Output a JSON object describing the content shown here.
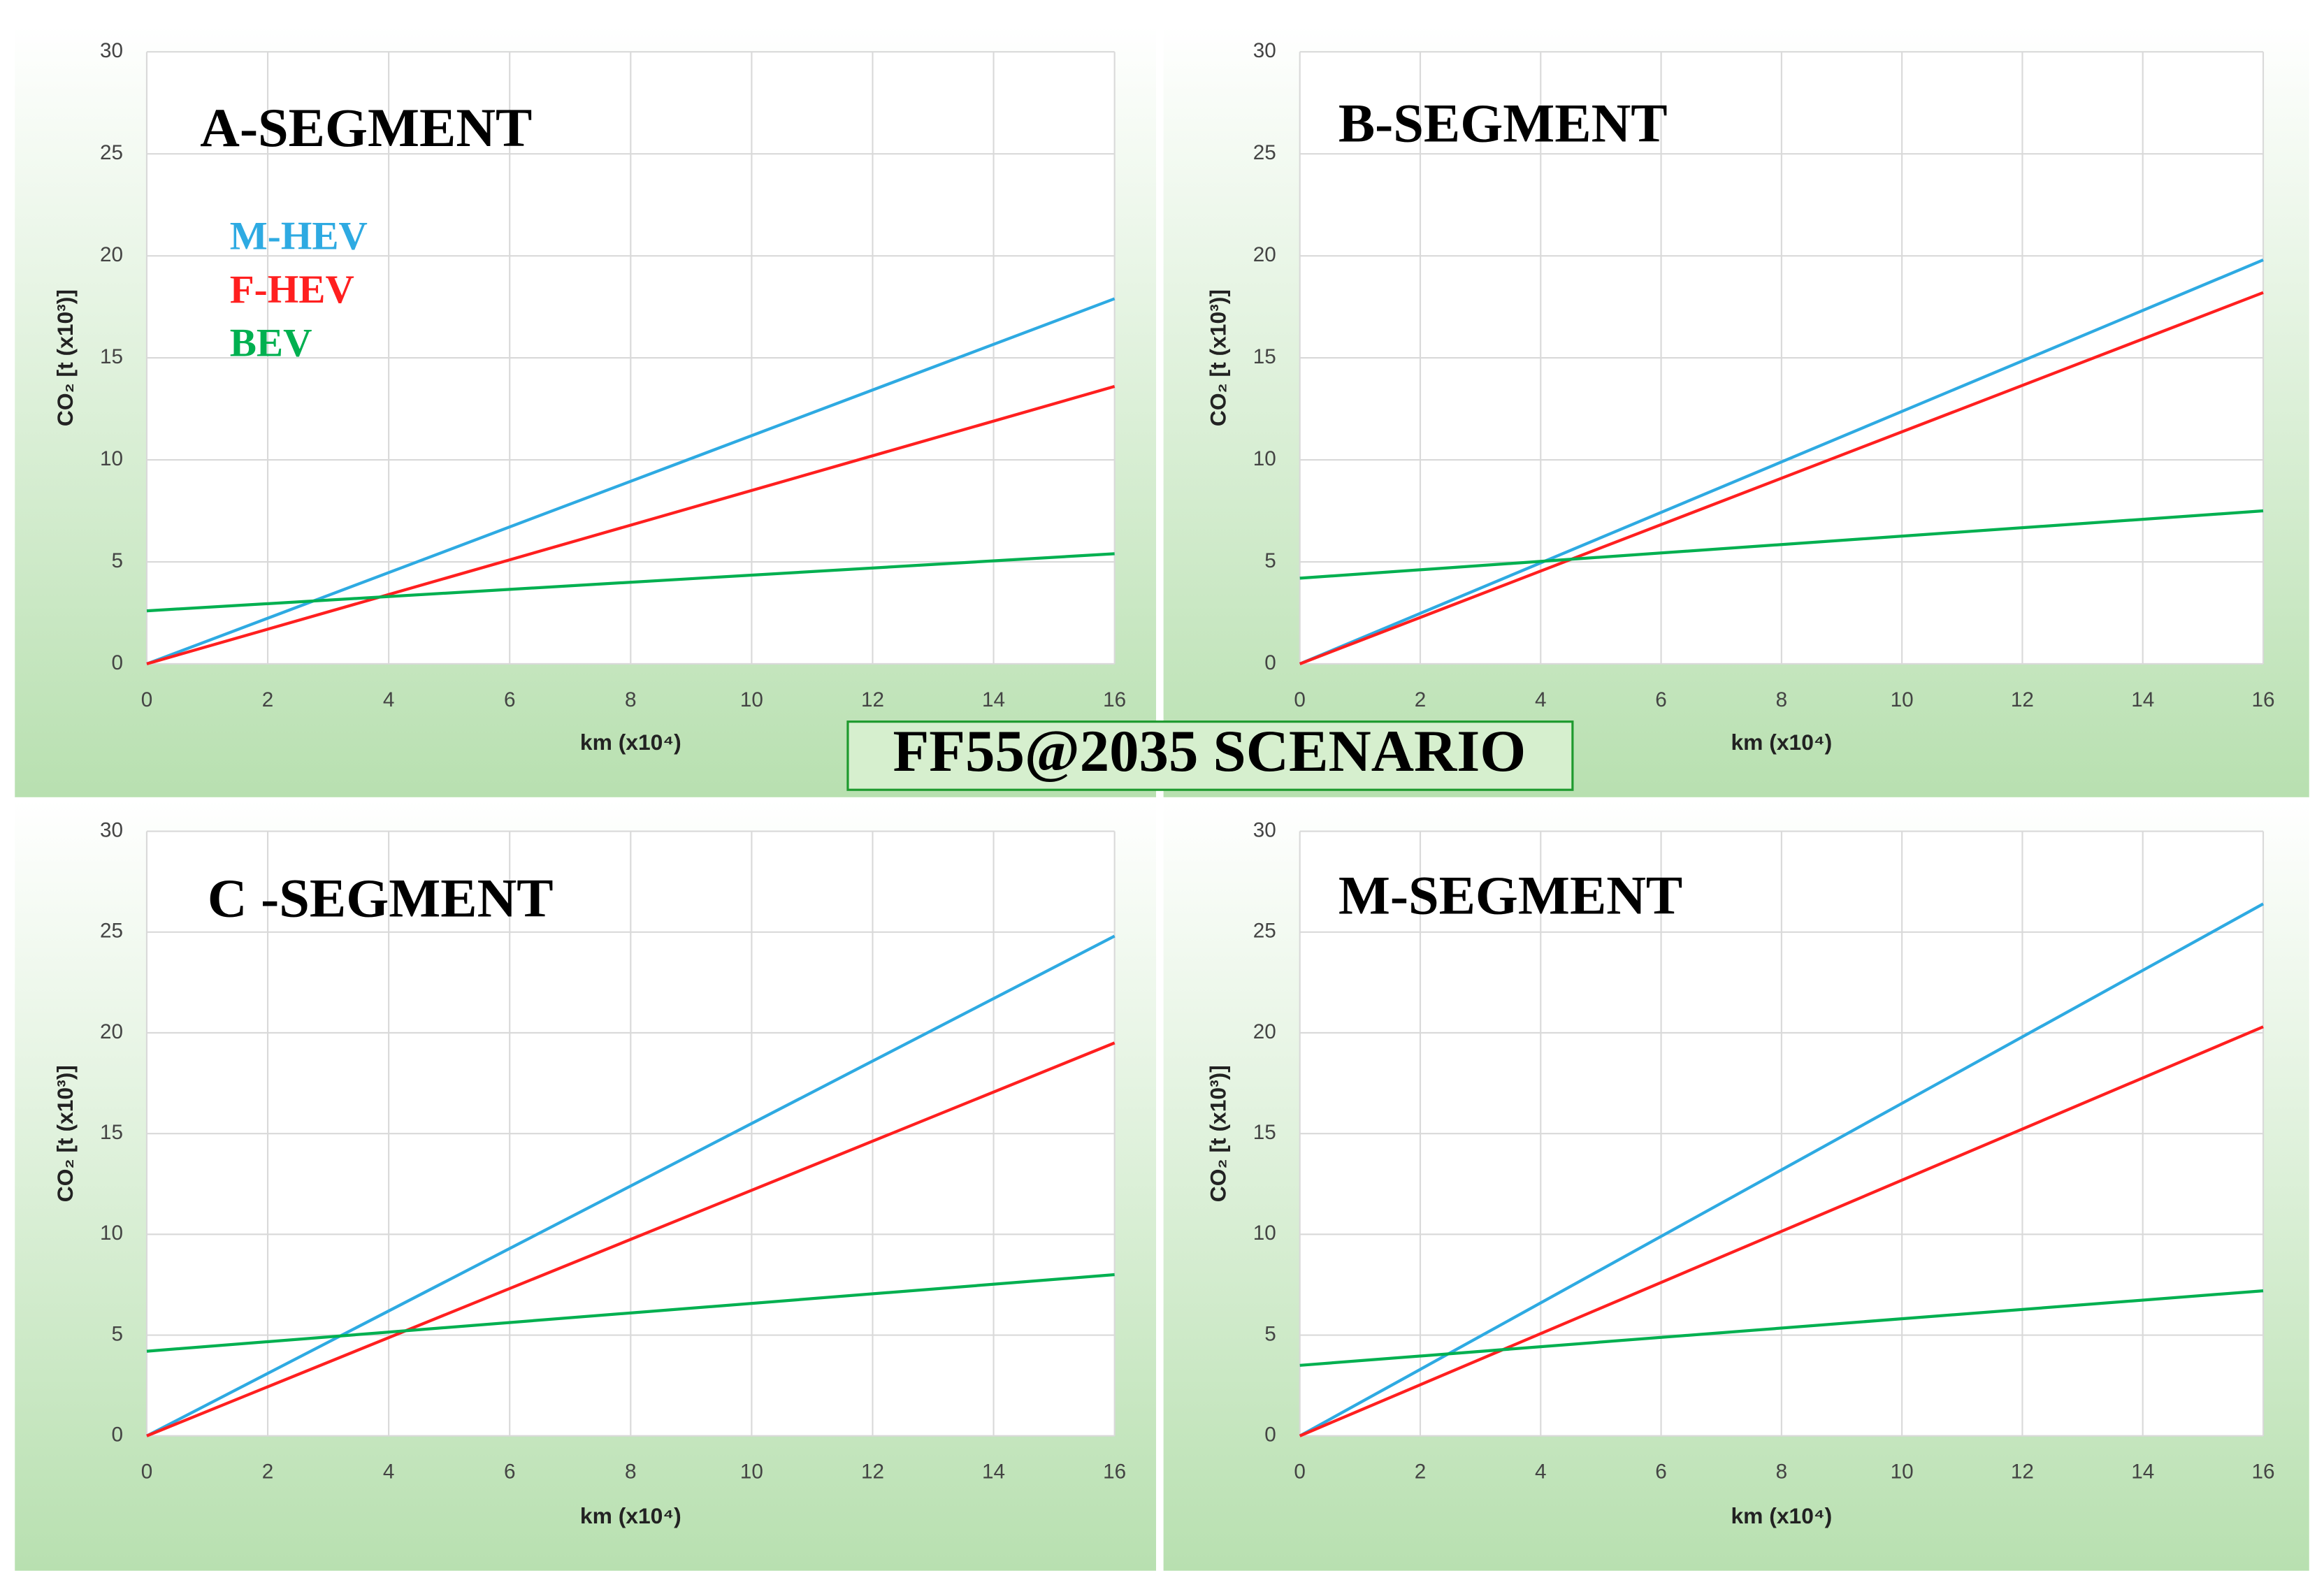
{
  "title": "FF55@2035 SCENARIO",
  "chart_data": [
    {
      "type": "line",
      "title": "A-SEGMENT",
      "x_label": "km (x10⁴)",
      "y_label": "CO₂ [t (x10³)]",
      "x": [
        0,
        16
      ],
      "xlim": [
        0,
        16
      ],
      "xticks": [
        0,
        2,
        4,
        6,
        8,
        10,
        12,
        14,
        16
      ],
      "ylim": [
        0,
        30
      ],
      "yticks": [
        0,
        5,
        10,
        15,
        20,
        25,
        30
      ],
      "grid": true,
      "legend": "upper left",
      "series": [
        {
          "name": "M-HEV",
          "color": "#2eaae2",
          "values": [
            0,
            17.9
          ]
        },
        {
          "name": "F-HEV",
          "color": "#ff1f1f",
          "values": [
            0,
            13.6
          ]
        },
        {
          "name": "BEV",
          "color": "#00b050",
          "values": [
            2.6,
            5.4
          ]
        }
      ]
    },
    {
      "type": "line",
      "title": "B-SEGMENT",
      "x_label": "km (x10⁴)",
      "y_label": "CO₂ [t (x10³)]",
      "x": [
        0,
        16
      ],
      "xlim": [
        0,
        16
      ],
      "xticks": [
        0,
        2,
        4,
        6,
        8,
        10,
        12,
        14,
        16
      ],
      "ylim": [
        0,
        30
      ],
      "yticks": [
        0,
        5,
        10,
        15,
        20,
        25,
        30
      ],
      "grid": true,
      "series": [
        {
          "color": "#2eaae2",
          "values": [
            0,
            19.8
          ]
        },
        {
          "color": "#ff1f1f",
          "values": [
            0,
            18.2
          ]
        },
        {
          "color": "#00b050",
          "values": [
            4.2,
            7.5
          ]
        }
      ]
    },
    {
      "type": "line",
      "title": "C -SEGMENT",
      "x_label": "km (x10⁴)",
      "y_label": "CO₂ [t (x10³)]",
      "x": [
        0,
        16
      ],
      "xlim": [
        0,
        16
      ],
      "xticks": [
        0,
        2,
        4,
        6,
        8,
        10,
        12,
        14,
        16
      ],
      "ylim": [
        0,
        30
      ],
      "yticks": [
        0,
        5,
        10,
        15,
        20,
        25,
        30
      ],
      "grid": true,
      "series": [
        {
          "color": "#2eaae2",
          "values": [
            0,
            24.8
          ]
        },
        {
          "color": "#ff1f1f",
          "values": [
            0,
            19.5
          ]
        },
        {
          "color": "#00b050",
          "values": [
            4.2,
            8.0
          ]
        }
      ]
    },
    {
      "type": "line",
      "title": "M-SEGMENT",
      "x_label": "km (x10⁴)",
      "y_label": "CO₂ [t (x10³)]",
      "x": [
        0,
        16
      ],
      "xlim": [
        0,
        16
      ],
      "xticks": [
        0,
        2,
        4,
        6,
        8,
        10,
        12,
        14,
        16
      ],
      "ylim": [
        0,
        30
      ],
      "yticks": [
        0,
        5,
        10,
        15,
        20,
        25,
        30
      ],
      "grid": true,
      "series": [
        {
          "color": "#2eaae2",
          "values": [
            0,
            26.4
          ]
        },
        {
          "color": "#ff1f1f",
          "values": [
            0,
            20.3
          ]
        },
        {
          "color": "#00b050",
          "values": [
            3.5,
            7.2
          ]
        }
      ]
    }
  ]
}
